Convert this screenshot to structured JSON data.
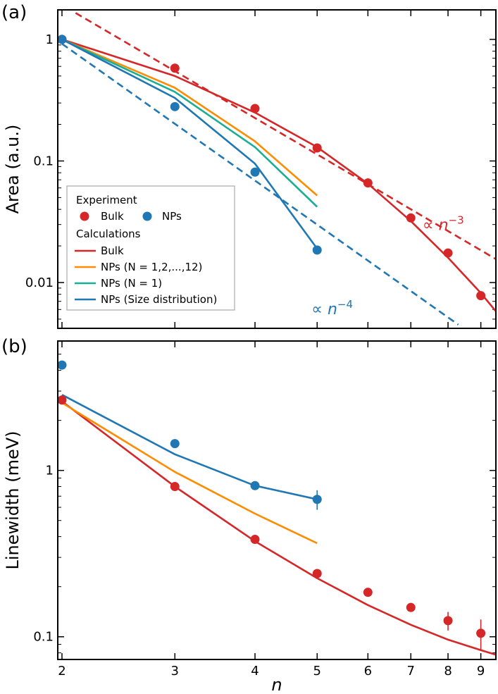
{
  "colors": {
    "bulk": "#d62728",
    "nps": "#1f77b4",
    "orange": "#ff8c00",
    "teal": "#1aae94",
    "axis": "#000000"
  },
  "chart_data": [
    {
      "panel_label": "(a)",
      "type": "line",
      "ylabel": "Area (a.u.)",
      "xscale": "log",
      "yscale": "log",
      "xlim": [
        1.97,
        9.5
      ],
      "ylim": [
        0.0042,
        1.75
      ],
      "xticks": [
        2,
        3,
        4,
        5,
        6,
        7,
        8,
        9
      ],
      "yticks": [
        {
          "value": 1,
          "label": "1"
        },
        {
          "value": 0.1,
          "label": "0.1"
        },
        {
          "value": 0.01,
          "label": "0.01"
        }
      ],
      "legend": {
        "position": "lower-left",
        "group_titles": [
          "Experiment",
          "Calculations"
        ],
        "marker_entries": [
          "Bulk",
          "NPs"
        ],
        "line_entries": [
          "Bulk",
          "NPs (N = 1,2,...,12)",
          "NPs (N = 1)",
          "NPs (Size distribution)"
        ]
      },
      "scatter": [
        {
          "name": "Bulk",
          "color": "bulk",
          "x": [
            2,
            3,
            4,
            5,
            6,
            7,
            8,
            9
          ],
          "y": [
            1.0,
            0.58,
            0.27,
            0.128,
            0.066,
            0.034,
            0.0175,
            0.0078
          ]
        },
        {
          "name": "NPs",
          "color": "nps",
          "x": [
            2,
            3,
            4,
            5
          ],
          "y": [
            1.0,
            0.28,
            0.081,
            0.0185
          ]
        }
      ],
      "lines": [
        {
          "name": "Bulk",
          "color": "bulk",
          "dashed": false,
          "x": [
            2,
            3,
            4,
            5,
            6,
            7,
            8,
            9,
            9.5
          ],
          "y": [
            1.0,
            0.5,
            0.25,
            0.13,
            0.065,
            0.032,
            0.016,
            0.0082,
            0.0058
          ]
        },
        {
          "name": "NPs (N = 1,2,...,12)",
          "color": "orange",
          "dashed": false,
          "x": [
            2,
            3,
            4,
            5
          ],
          "y": [
            1.0,
            0.4,
            0.145,
            0.052
          ]
        },
        {
          "name": "NPs (N = 1)",
          "color": "teal",
          "dashed": false,
          "x": [
            2,
            3,
            4,
            5
          ],
          "y": [
            1.0,
            0.37,
            0.13,
            0.042
          ]
        },
        {
          "name": "NPs (Size distribution)",
          "color": "nps",
          "dashed": false,
          "x": [
            2,
            3,
            4,
            5
          ],
          "y": [
            1.0,
            0.33,
            0.095,
            0.019
          ]
        },
        {
          "name": "∝ n^-3",
          "color": "bulk",
          "dashed": true,
          "x": [
            2.1,
            9.5
          ],
          "y": [
            1.65,
            0.0156
          ]
        },
        {
          "name": "∝ n^-4",
          "color": "nps",
          "dashed": true,
          "x": [
            2,
            8.3
          ],
          "y": [
            0.92,
            0.0045
          ]
        }
      ],
      "annotations": [
        {
          "prefix": "∝ ",
          "base": "n",
          "exponent": "−3",
          "color": "bulk",
          "x": 7.3,
          "y": 0.027
        },
        {
          "prefix": "∝ ",
          "base": "n",
          "exponent": "−4",
          "color": "nps",
          "x": 4.9,
          "y": 0.0055
        }
      ]
    },
    {
      "panel_label": "(b)",
      "type": "line",
      "ylabel": "Linewidth (meV)",
      "xlabel": "n",
      "xscale": "log",
      "yscale": "log",
      "xlim": [
        1.97,
        9.5
      ],
      "ylim": [
        0.073,
        6.0
      ],
      "xticks": [
        2,
        3,
        4,
        5,
        6,
        7,
        8,
        9
      ],
      "yticks": [
        {
          "value": 1,
          "label": "1"
        },
        {
          "value": 0.1,
          "label": "0.1"
        }
      ],
      "scatter": [
        {
          "name": "Bulk",
          "color": "bulk",
          "x": [
            2,
            3,
            4,
            5,
            6,
            7,
            8,
            9
          ],
          "y": [
            2.65,
            0.8,
            0.385,
            0.24,
            0.185,
            0.15,
            0.125,
            0.105
          ],
          "err": [
            0,
            0,
            0,
            0,
            0,
            0,
            0.016,
            0.022
          ]
        },
        {
          "name": "NPs",
          "color": "nps",
          "x": [
            2,
            3,
            4,
            5
          ],
          "y": [
            4.3,
            1.45,
            0.81,
            0.67
          ],
          "err": [
            0,
            0,
            0,
            0.09
          ]
        }
      ],
      "lines": [
        {
          "name": "Bulk",
          "color": "bulk",
          "dashed": false,
          "x": [
            2,
            3,
            4,
            5,
            6,
            7,
            8,
            9,
            9.5
          ],
          "y": [
            2.6,
            0.8,
            0.375,
            0.225,
            0.155,
            0.118,
            0.096,
            0.083,
            0.078
          ]
        },
        {
          "name": "NPs (N = 1,2,...,12)",
          "color": "orange",
          "dashed": false,
          "x": [
            2,
            3,
            4,
            5
          ],
          "y": [
            2.55,
            0.98,
            0.55,
            0.365
          ]
        },
        {
          "name": "NPs (Size distribution)",
          "color": "nps",
          "dashed": false,
          "x": [
            2,
            3,
            4,
            5
          ],
          "y": [
            2.85,
            1.25,
            0.81,
            0.67
          ]
        }
      ]
    }
  ]
}
